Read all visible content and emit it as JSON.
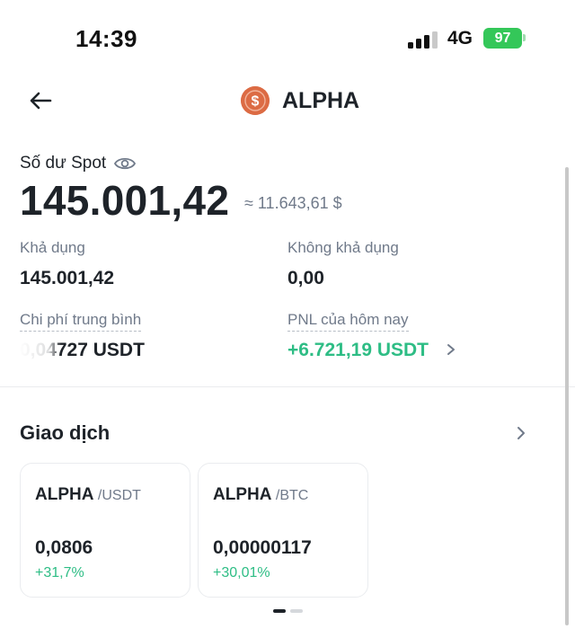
{
  "status_bar": {
    "time": "14:39",
    "network": "4G",
    "battery": "97"
  },
  "header": {
    "title": "ALPHA",
    "logo_icon": "dollar-coin-icon",
    "back_icon": "arrow-left-icon"
  },
  "balance": {
    "label": "Số dư Spot",
    "value": "145.001,42",
    "approx": "≈ 11.643,61 $"
  },
  "details": {
    "available_label": "Khả dụng",
    "available_value": "145.001,42",
    "unavailable_label": "Không khả dụng",
    "unavailable_value": "0,00",
    "avg_cost_label": "Chi phí trung bình",
    "avg_cost_value": "0,04727 USDT",
    "pnl_label": "PNL của hôm nay",
    "pnl_value": "+6.721,19 USDT"
  },
  "trading": {
    "title": "Giao dịch",
    "pairs": [
      {
        "base": "ALPHA",
        "quote": " /USDT",
        "price": "0,0806",
        "change": "+31,7%"
      },
      {
        "base": "ALPHA",
        "quote": " /BTC",
        "price": "0,00000117",
        "change": "+30,01%"
      }
    ]
  },
  "colors": {
    "accent_green": "#2ebd85",
    "logo": "#dc6b44",
    "battery": "#34c759"
  }
}
